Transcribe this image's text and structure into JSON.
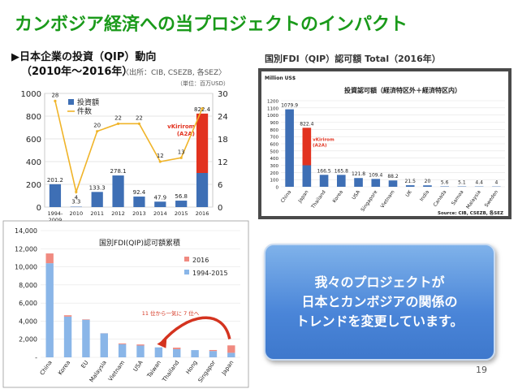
{
  "slide": {
    "title": "カンボジア経済への当プロジェクトのインパクト",
    "callout_lines": [
      "我々のプロジェクトが",
      "日本とカンボジアの関係の",
      "トレンドを変更しています。"
    ],
    "page_number": "19"
  },
  "colors": {
    "title": "#1a9a1a",
    "bar_blue": "#3e6fb5",
    "bar_red": "#e2321f",
    "line_orange": "#f0b429",
    "callout": "#4a85d8"
  },
  "chart_data": [
    {
      "type": "bar",
      "title": "▶日本企業の投資（QIP）動向",
      "subtitle": "（2010年〜2016年）",
      "source_note": "〈出所：CIB, CSEZB, 各SEZ〉",
      "unit_note": "（単位：百万USD）",
      "categories": [
        "1994-2009",
        "2010",
        "2011",
        "2012",
        "2013",
        "2014",
        "2015",
        "2016"
      ],
      "series": [
        {
          "name": "投資額",
          "values": [
            201.2,
            3.3,
            133.3,
            278.1,
            92.4,
            47.9,
            56.8,
            822.4
          ]
        },
        {
          "name": "件数",
          "values": [
            28,
            4,
            20,
            22,
            22,
            12,
            13,
            26
          ]
        }
      ],
      "stacked_2016": {
        "base": 300,
        "highlight": 522.4,
        "highlight_label_lines": [
          "vKirirom",
          "(A2A)"
        ]
      },
      "ylim_left": [
        0,
        1000
      ],
      "yticks_left": [
        0,
        200,
        400,
        600,
        800,
        1000
      ],
      "ylim_right": [
        0,
        30
      ],
      "yticks_right": [
        0,
        6,
        12,
        18,
        24,
        30
      ],
      "xtick_labels": [
        "1994-\n2009",
        "2010",
        "2011",
        "2012",
        "2013",
        "2014",
        "2015",
        "2016"
      ],
      "legend": "top-left"
    },
    {
      "type": "bar",
      "title": "国別FDI（QIP）認可額 Total（2016年）",
      "inner_title": "投資認可額（経済特区外＋経済特区内）",
      "unit_label": "Million US$",
      "source": "Source: CIB, CSEZB, 各SEZ",
      "categories": [
        "China",
        "Japan",
        "Thailand",
        "Korea",
        "USA",
        "Singapore",
        "Vietnam",
        "UK",
        "India",
        "Canada",
        "Samoa",
        "Malaysia",
        "Sweden"
      ],
      "values": [
        1079.9,
        822.4,
        166.5,
        165.8,
        121.8,
        109.4,
        88.2,
        21.5,
        20,
        5.6,
        5.1,
        4.4,
        4
      ],
      "value_labels": [
        "1079.9",
        "822.4",
        "166.5",
        "165.8",
        "121.8",
        "109.4",
        "88.2",
        "21.5",
        "20",
        "5.6",
        "5.1",
        "4.4",
        "4"
      ],
      "japan_highlight": 522.4,
      "highlight_label_lines": [
        "vKirirom",
        "(A2A)"
      ],
      "ylim": [
        0,
        1200
      ],
      "yticks": [
        0,
        100,
        200,
        300,
        400,
        500,
        600,
        700,
        800,
        900,
        1000,
        1100,
        1200
      ]
    },
    {
      "type": "bar",
      "title": "国別FDI(QIP)認可額累積",
      "categories": [
        "China",
        "Korea",
        "EU",
        "Malaysia",
        "Vietnam",
        "USA",
        "Taiwan",
        "Thailand",
        "Hong Kong",
        "Singapor",
        "Japan"
      ],
      "xtick_labels": [
        "China",
        "Korea",
        "EU",
        "Malaysia",
        "Vietnam",
        "USA",
        "Taiwan",
        "Thailand",
        "Hong",
        "Singapor",
        "Japan"
      ],
      "series": [
        {
          "name": "1994-2015",
          "values": [
            10400,
            4500,
            4150,
            2650,
            1450,
            1300,
            1100,
            900,
            800,
            700,
            500
          ]
        },
        {
          "name": "2016",
          "values": [
            1080,
            150,
            50,
            10,
            90,
            120,
            0,
            170,
            0,
            110,
            820
          ]
        }
      ],
      "ylim": [
        0,
        14000
      ],
      "ytick_labels": [
        "-",
        "2,000",
        "4,000",
        "6,000",
        "8,000",
        "10,000",
        "12,000",
        "14,000"
      ],
      "annotation": "11 位から一気に 7 位へ",
      "legend": "top-center"
    }
  ]
}
